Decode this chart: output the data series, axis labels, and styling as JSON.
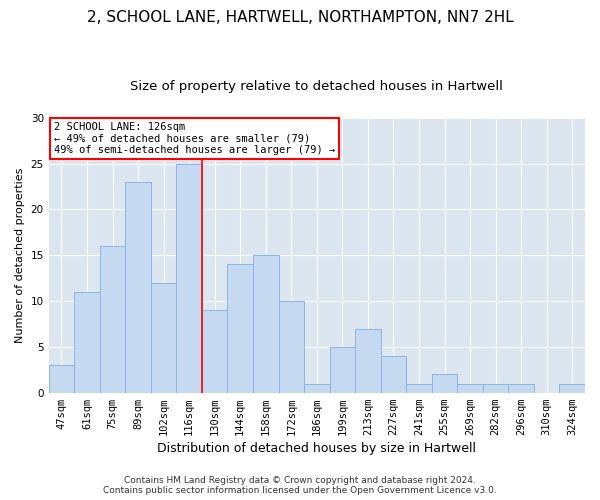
{
  "title1": "2, SCHOOL LANE, HARTWELL, NORTHAMPTON, NN7 2HL",
  "title2": "Size of property relative to detached houses in Hartwell",
  "xlabel": "Distribution of detached houses by size in Hartwell",
  "ylabel": "Number of detached properties",
  "footer1": "Contains HM Land Registry data © Crown copyright and database right 2024.",
  "footer2": "Contains public sector information licensed under the Open Government Licence v3.0.",
  "annotation_line1": "2 SCHOOL LANE: 126sqm",
  "annotation_line2": "← 49% of detached houses are smaller (79)",
  "annotation_line3": "49% of semi-detached houses are larger (79) →",
  "bar_color": "#c5d9f1",
  "bar_edge_color": "#8db4e2",
  "ref_line_color": "red",
  "fig_facecolor": "#ffffff",
  "plot_bg_color": "#dce6f1",
  "categories": [
    "47sqm",
    "61sqm",
    "75sqm",
    "89sqm",
    "102sqm",
    "116sqm",
    "130sqm",
    "144sqm",
    "158sqm",
    "172sqm",
    "186sqm",
    "199sqm",
    "213sqm",
    "227sqm",
    "241sqm",
    "255sqm",
    "269sqm",
    "282sqm",
    "296sqm",
    "310sqm",
    "324sqm"
  ],
  "values": [
    3,
    11,
    16,
    23,
    12,
    25,
    9,
    14,
    15,
    10,
    1,
    5,
    7,
    4,
    1,
    2,
    1,
    1,
    1,
    0,
    1
  ],
  "ylim": [
    0,
    30
  ],
  "yticks": [
    0,
    5,
    10,
    15,
    20,
    25,
    30
  ],
  "ref_line_x": 5.5,
  "grid_color": "#ffffff",
  "title1_fontsize": 11,
  "title2_fontsize": 9.5,
  "xlabel_fontsize": 9,
  "ylabel_fontsize": 8,
  "tick_fontsize": 7.5,
  "footer_fontsize": 6.5,
  "ann_fontsize": 7.5
}
